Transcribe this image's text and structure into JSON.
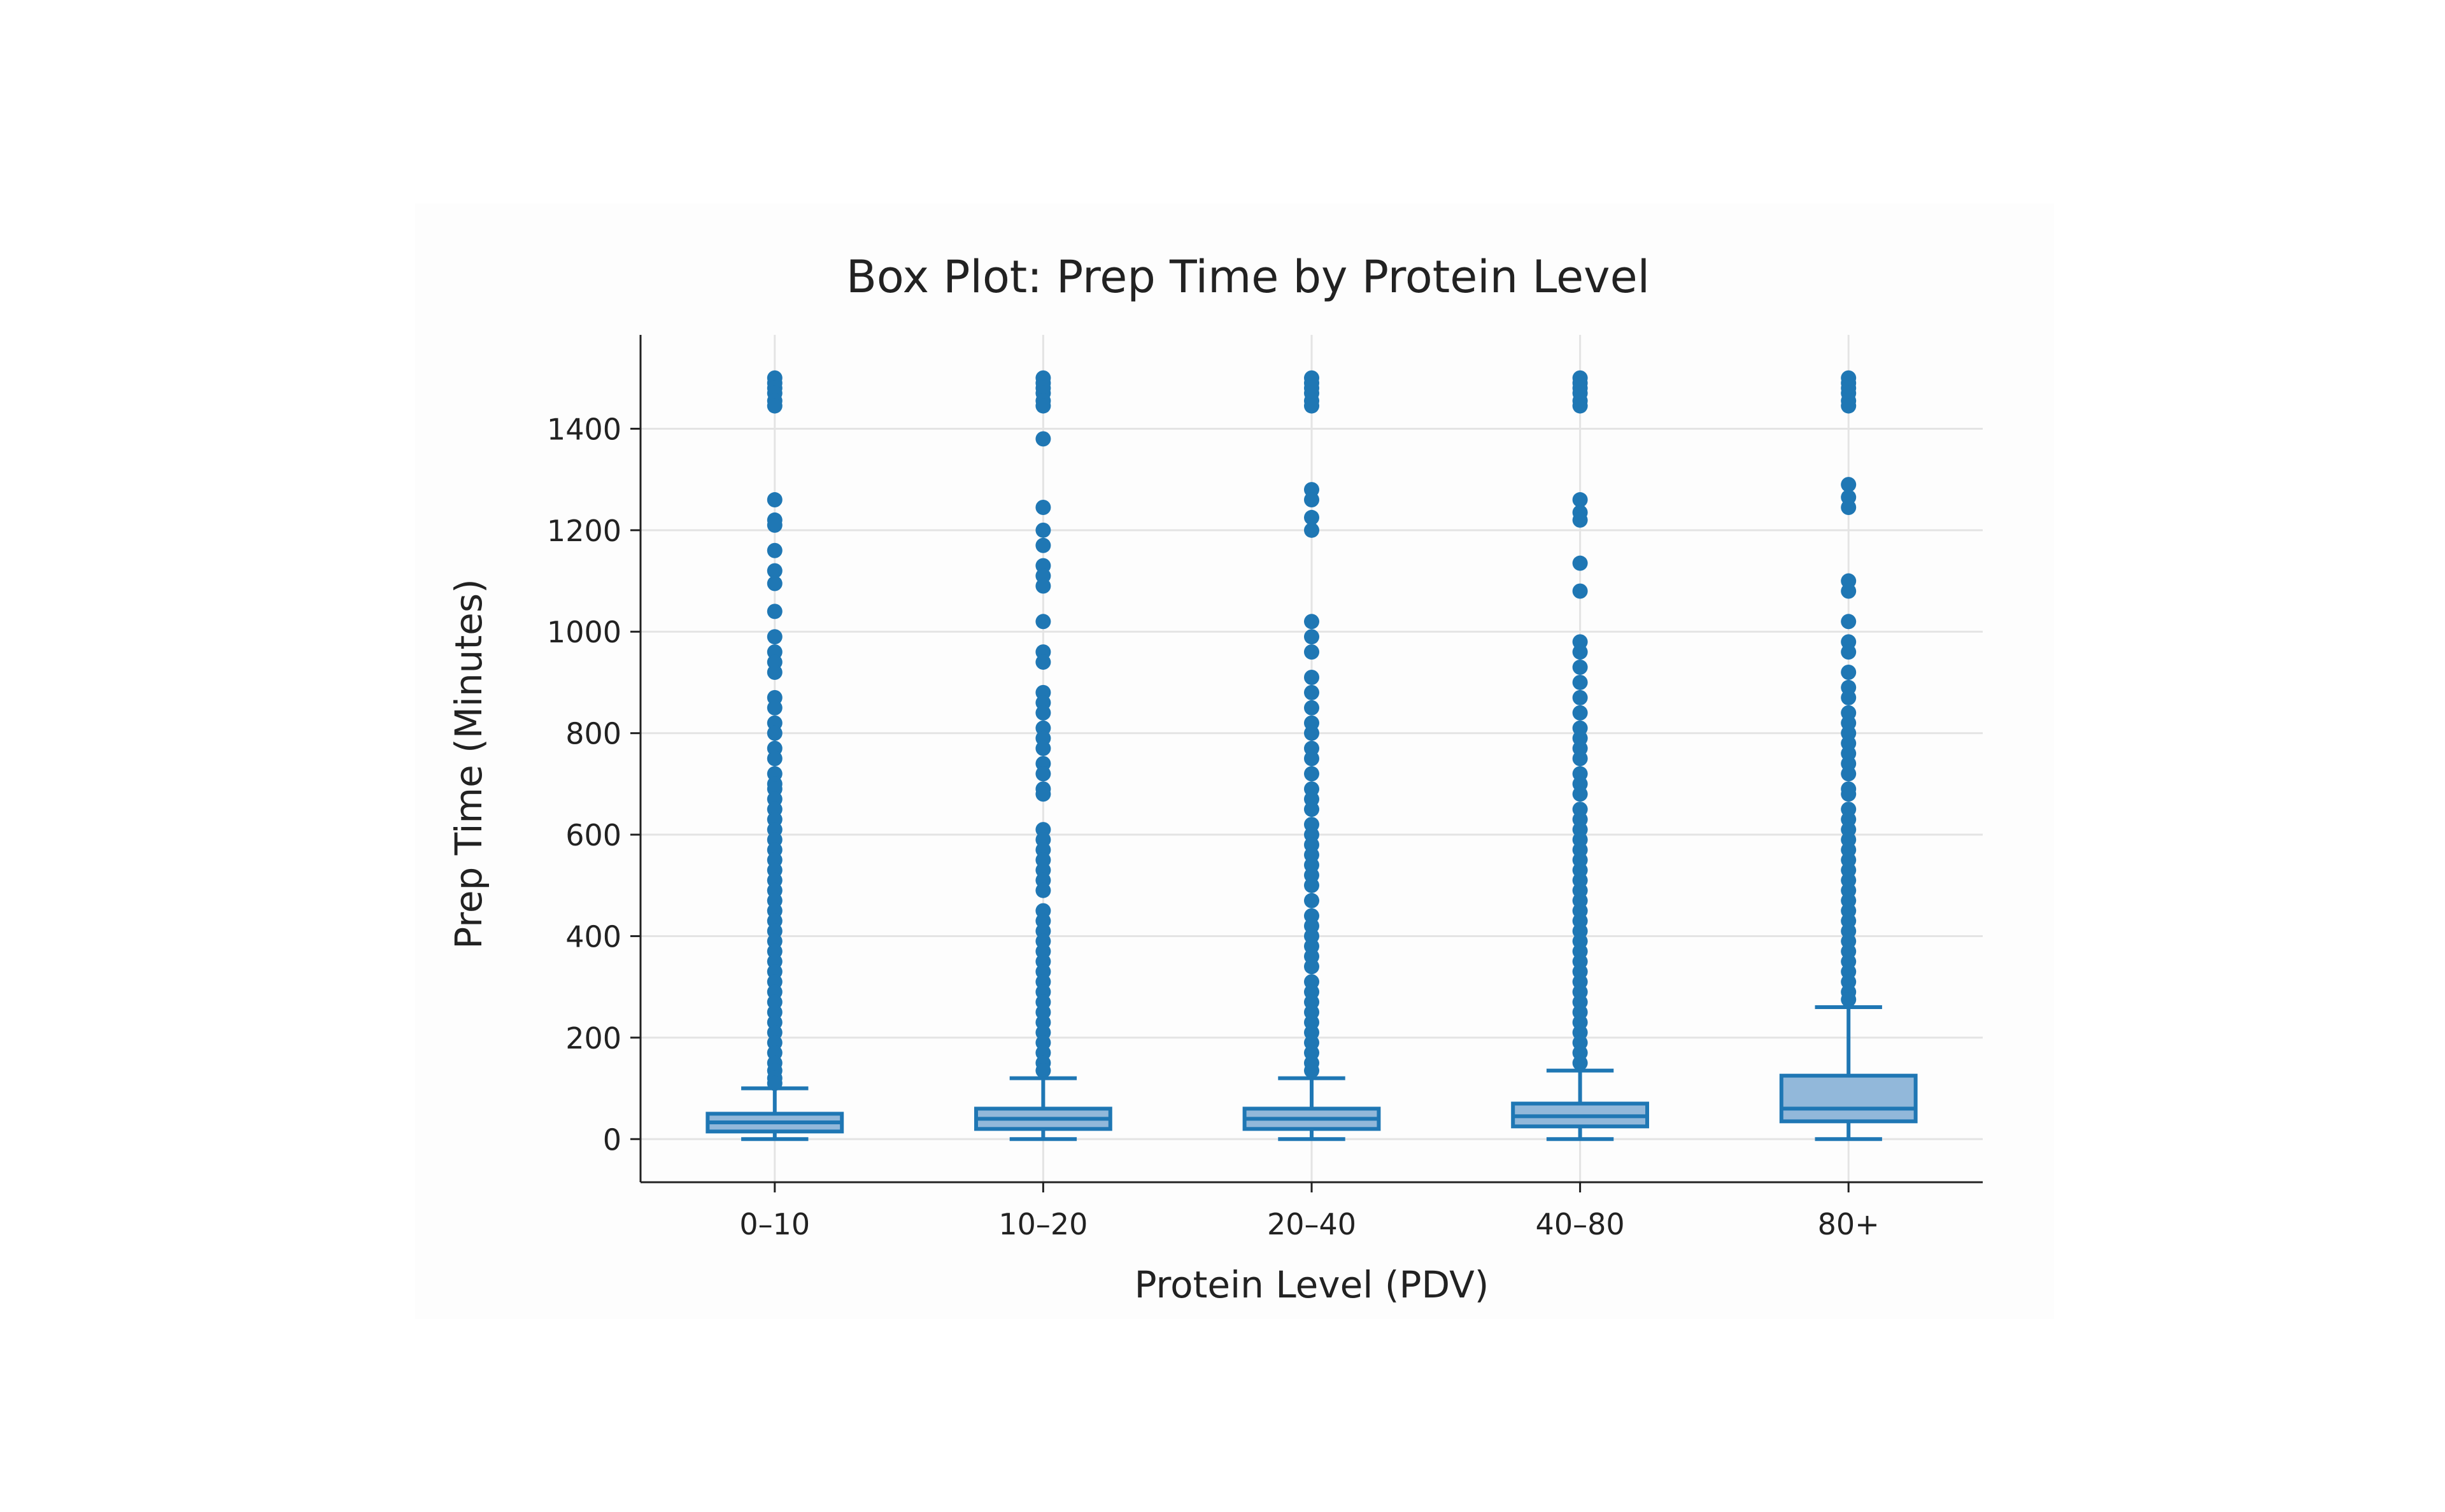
{
  "chart_data": {
    "type": "box",
    "title": "Box Plot: Prep Time by Protein Level",
    "xlabel": "Protein Level (PDV)",
    "ylabel": "Prep Time (Minutes)",
    "ylim": [
      -85,
      1585
    ],
    "yticks": [
      0,
      200,
      400,
      600,
      800,
      1000,
      1200,
      1400
    ],
    "grid": true,
    "color": "#1f77b4",
    "fill": "#92b8da",
    "categories": [
      "0–10",
      "10–20",
      "20–40",
      "40–80",
      "80+"
    ],
    "boxes": [
      {
        "category": "0–10",
        "min": 0,
        "q1": 15,
        "median": 33,
        "q3": 50,
        "whisker_high": 100,
        "outliers": [
          1500,
          1490,
          1480,
          1470,
          1455,
          1445,
          1260,
          1220,
          1210,
          1160,
          1120,
          1095,
          1040,
          990,
          960,
          940,
          920,
          870,
          850,
          820,
          800,
          770,
          750,
          720,
          700,
          690,
          670,
          650,
          630,
          610,
          590,
          570,
          550,
          530,
          510,
          490,
          470,
          450,
          430,
          410,
          390,
          370,
          350,
          330,
          310,
          290,
          270,
          250,
          230,
          210,
          190,
          170,
          150,
          135,
          120,
          110
        ]
      },
      {
        "category": "10–20",
        "min": 0,
        "q1": 20,
        "median": 40,
        "q3": 60,
        "whisker_high": 120,
        "outliers": [
          1500,
          1490,
          1480,
          1470,
          1455,
          1445,
          1380,
          1245,
          1200,
          1170,
          1130,
          1110,
          1090,
          1020,
          960,
          940,
          880,
          860,
          840,
          810,
          790,
          770,
          740,
          720,
          690,
          680,
          610,
          590,
          570,
          550,
          530,
          510,
          490,
          450,
          430,
          410,
          390,
          370,
          350,
          330,
          310,
          290,
          270,
          250,
          230,
          210,
          190,
          170,
          150,
          135
        ]
      },
      {
        "category": "20–40",
        "min": 0,
        "q1": 20,
        "median": 40,
        "q3": 60,
        "whisker_high": 120,
        "outliers": [
          1500,
          1490,
          1480,
          1470,
          1455,
          1445,
          1280,
          1260,
          1225,
          1200,
          1020,
          990,
          960,
          910,
          880,
          850,
          820,
          800,
          770,
          750,
          720,
          690,
          670,
          650,
          620,
          600,
          580,
          560,
          540,
          520,
          500,
          470,
          440,
          420,
          400,
          380,
          360,
          340,
          310,
          290,
          270,
          250,
          230,
          210,
          190,
          170,
          150,
          135
        ]
      },
      {
        "category": "40–80",
        "min": 0,
        "q1": 25,
        "median": 45,
        "q3": 70,
        "whisker_high": 135,
        "outliers": [
          1500,
          1490,
          1480,
          1470,
          1455,
          1445,
          1260,
          1235,
          1220,
          1135,
          1080,
          980,
          960,
          930,
          900,
          870,
          840,
          810,
          790,
          770,
          750,
          720,
          700,
          680,
          650,
          630,
          610,
          590,
          570,
          550,
          530,
          510,
          490,
          470,
          450,
          430,
          410,
          390,
          370,
          350,
          330,
          310,
          290,
          270,
          250,
          230,
          210,
          190,
          170,
          150
        ]
      },
      {
        "category": "80+",
        "min": 0,
        "q1": 35,
        "median": 60,
        "q3": 125,
        "whisker_high": 260,
        "outliers": [
          1500,
          1490,
          1480,
          1470,
          1455,
          1445,
          1290,
          1265,
          1245,
          1100,
          1080,
          1020,
          980,
          960,
          920,
          890,
          870,
          840,
          820,
          800,
          780,
          760,
          740,
          720,
          690,
          680,
          650,
          630,
          610,
          590,
          570,
          550,
          530,
          510,
          490,
          470,
          450,
          430,
          410,
          390,
          370,
          350,
          330,
          310,
          290,
          275
        ]
      }
    ]
  }
}
